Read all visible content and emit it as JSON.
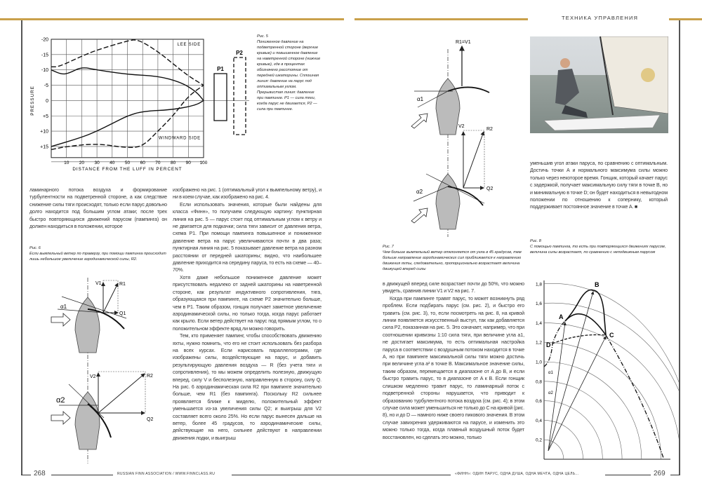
{
  "header": {
    "section_title": "ТЕХНИКА УПРАВЛЕНИЯ",
    "accent_color": "#c9a04a"
  },
  "footer": {
    "left_page_number": "268",
    "left_text": "RUSSIAN FINN ASSOCIATION / WWW.FINNCLASS.RU",
    "right_text": "«ФИНН»: ОДИН ПАРУС, ОДНА ДУША, ОДНА МЕЧТА, ОДНА ЦЕЛЬ...",
    "right_page_number": "269"
  },
  "left_page": {
    "col1": [
      "ламинарного потока воздуха и формирование турбулентности на подветренной стороне, а как следствие снижение силы тяги происходят, только если парус довольно долго находится под большим углом атаки; после трех быстро повторяющихся движений парусом (пампинга) он должен находиться в положении, которое"
    ],
    "col2": [
      "изображено на рис. 1 (оптимальный угол к вымпельному ветру), и ни в коем случае, как изображено на рис. 4.",
      "Если использовать значения, которые были найдены для класса «Финн», то получаем следующую картину: пунктирная линия на рис. 5 — парус стоит под оптимальным углом к ветру и не двигается для подкачки; сила тяги зависит от давления ветра, схема P1. При помощи пампинга повышенное и пониженное давление ветра на парус увеличиваются почти в два раза; пунктирная линия на рис. 5 показывает давление ветра на разном расстоянии от передней шкаторины; видно, что наибольшее давление приходится на середину паруса, то есть на схеме — 40–70%.",
      "Хотя даже небольшое пониженное давление может присутствовать недалеко от задней шкаторины на наветренной стороне, как результат индуктивного сопротивления, тяга, образующаяся при пампинге, на схеме P2 значительно больше, чем в P1. Таким образом, гонщик получает заметное увеличение аэродинамической силы, но только тогда, когда парус работает как крыло. Если ветер действует на парус под прямым углом, то о положительном эффекте вряд ли можно говорить.",
      "Тем, кто применяет пампинг, чтобы способствовать движению яхты, нужно помнить, что его не стоит использовать без разбора на всех курсах. Если нарисовать параллелограмм, где изображены силы, воздействующие на парус, и добавить результирующую давления воздуха — R (без учета тяги и сопротивления), то мы можем определить полезную, движущую вперед, силу V и бесполезную, направленную в сторону, силу Q. На рис. 6 аэродинамическая сила R2 при пампинге значительно больше, чем R1 (без пампинга). Поскольку R2 сильнее проявляется ближе к миделю, положительный эффект уменьшается из-за увеличения силы Q2; и выигрыш для V2 составляет всего около 25%. Но если парус вынесен дальше на ветер, более 45 градусов, то аэродинамические силы, действующие на него, сильнее действуют в направлении движения лодки, и выигрыш"
    ],
    "fig5_caption": {
      "label": "Рис. 5",
      "text": "Пониженное давление на подветренной стороне (верхние кривые) и повышенное давление на наветренной стороне (нижние кривые), где в процентах обозначено расстояние от передней шкаторины. Сплошная линия: давление на парус под оптимальным углом. Прерывистая линия: давление при пампинге. P1 — сила тяги, когда парус не двигается, P2 — сила при пампинге."
    },
    "fig6_caption": {
      "label": "Рис. 6",
      "text": "Если вымпельный ветер по траверзу, при помощи пампинга происходит лишь небольшое увеличение аэродинамической силы, R2."
    },
    "fig6_labels": {
      "v1": "V1",
      "r1": "R1",
      "q1": "Q1",
      "a1": "α1",
      "v2": "V2",
      "r2": "R2",
      "q2": "Q2",
      "a2": "α2"
    }
  },
  "right_page": {
    "col1": [
      "в движущей вперед силе возрастает почти до 50%, что можно увидеть, сравнив линии V1 и V2 на рис. 7.",
      "Когда при пампинге травят парус, то может возникнуть ряд проблем. Если подбирать парус (см. рис. 2), и быстро его травить (см. рис. 3), то, если посмотреть на рис. 8, на кривой линии появляется искусственный выступ, так как добавляется сила P2, показанная на рис. 5. Это означает, например, что при соотношении кривизны 1:10 сила тяги, при величине угла a1, не достигает максимума, то есть оптимальная настройка паруса в соответствии с воздушным потоком находится в точке A, но при пампинге максимальной силы тяги можно достичь при величине угла a² в точке B. Максимальное значение силы, таким образом, перемещается в диапазоне от A до B, и если быстро травить парус, то в диапазоне от A к B. Если гонщик слишком медленно травит парус, то ламинарный поток с подветренной стороны нарушается, что приводит к образованию турбулентного потока воздуха (см. рис. 4); в этом случае сила может уменьшиться не только до C на кривой (рис. 8), но и до D — намного ниже своего пикового значения. В этом случае завихрения удерживаются на парусе, и изменить это можно только тогда, когда плавный воздушный поток будет восстановлен, но сделать это можно, только"
    ],
    "col2": [
      "уменьшив угол атаки паруса, по сравнению с оптимальным. Достичь точки A и нормального максимума силы можно только через некоторое время. Гонщик, который качает парус с задержкой, получает максимальную силу тяги в точке B, но и минимальную в точке D; он будет находиться в невыгодном положении по отношению к сопернику, который поддерживает постоянное значение в точке A. ■"
    ],
    "fig7_caption": {
      "label": "Рис. 7",
      "text": "Чем больше вымпельный ветер отклоняется от угла в 45 градусов, тем больше направление аэродинамических сил приближается к направлению движения яхты, следовательно, пропорционально возрастает величина движущей вперед силы"
    },
    "fig7_labels": {
      "r1v1": "R1=V1",
      "a1": "α1",
      "v2": "V2",
      "r2": "R2",
      "q2": "Q2",
      "a2": "α2"
    },
    "fig8_caption": {
      "label": "Рис. 8",
      "text": "С помощью пампинга, то есть при повторяющихся движениях парусом, величина силы возрастает, по сравнению с неподвижным парусом"
    },
    "fig8": {
      "y_ticks": [
        "0,2",
        "0,4",
        "0,6",
        "0,8",
        "1,0",
        "1,2",
        "1,4",
        "1,6",
        "1,8"
      ],
      "points": [
        "A",
        "B",
        "C",
        "D"
      ],
      "angle_labels": [
        "α1",
        "α2"
      ]
    }
  },
  "chart_data": {
    "type": "line",
    "title": "",
    "xlabel": "DISTANCE FROM THE LUFF IN PERCENT",
    "ylabel": "PRESSURE",
    "x_ticks": [
      "10",
      "20",
      "30",
      "40",
      "50",
      "60",
      "70",
      "80",
      "90",
      "100"
    ],
    "y_ticks": [
      "-20",
      "-15",
      "-10",
      "-5",
      "0",
      "+5",
      "+10",
      "+15"
    ],
    "xlim": [
      0,
      100
    ],
    "ylim": [
      -20,
      20
    ],
    "y_inverted": true,
    "grid": true,
    "annotations": [
      "LEE SIDE",
      "WINDWARD SIDE",
      "P1",
      "P2"
    ],
    "series": [
      {
        "style": "dashed",
        "x": [
          0,
          5,
          20,
          30,
          50,
          57,
          70,
          80,
          90,
          100
        ],
        "y": [
          -11,
          -11,
          -14.5,
          -16.5,
          -19.5,
          -20,
          -16,
          -12,
          -8,
          -5
        ]
      },
      {
        "style": "solid",
        "x": [
          0,
          7,
          12,
          20,
          30,
          50,
          70,
          85,
          95,
          100
        ],
        "y": [
          -10,
          -8.5,
          -9,
          -11,
          -10,
          -8.5,
          -8,
          -6,
          -3,
          0
        ]
      },
      {
        "style": "solid",
        "x": [
          0,
          20,
          30,
          40,
          50,
          60,
          80,
          95,
          100
        ],
        "y": [
          15,
          12,
          10,
          7.5,
          5,
          3.5,
          3,
          1.5,
          0
        ]
      },
      {
        "style": "dashed",
        "x": [
          0,
          10,
          30,
          50,
          60,
          70,
          80,
          90,
          100
        ],
        "y": [
          16,
          15,
          14,
          15.5,
          15,
          10,
          5,
          -1.5,
          -5
        ]
      }
    ]
  }
}
